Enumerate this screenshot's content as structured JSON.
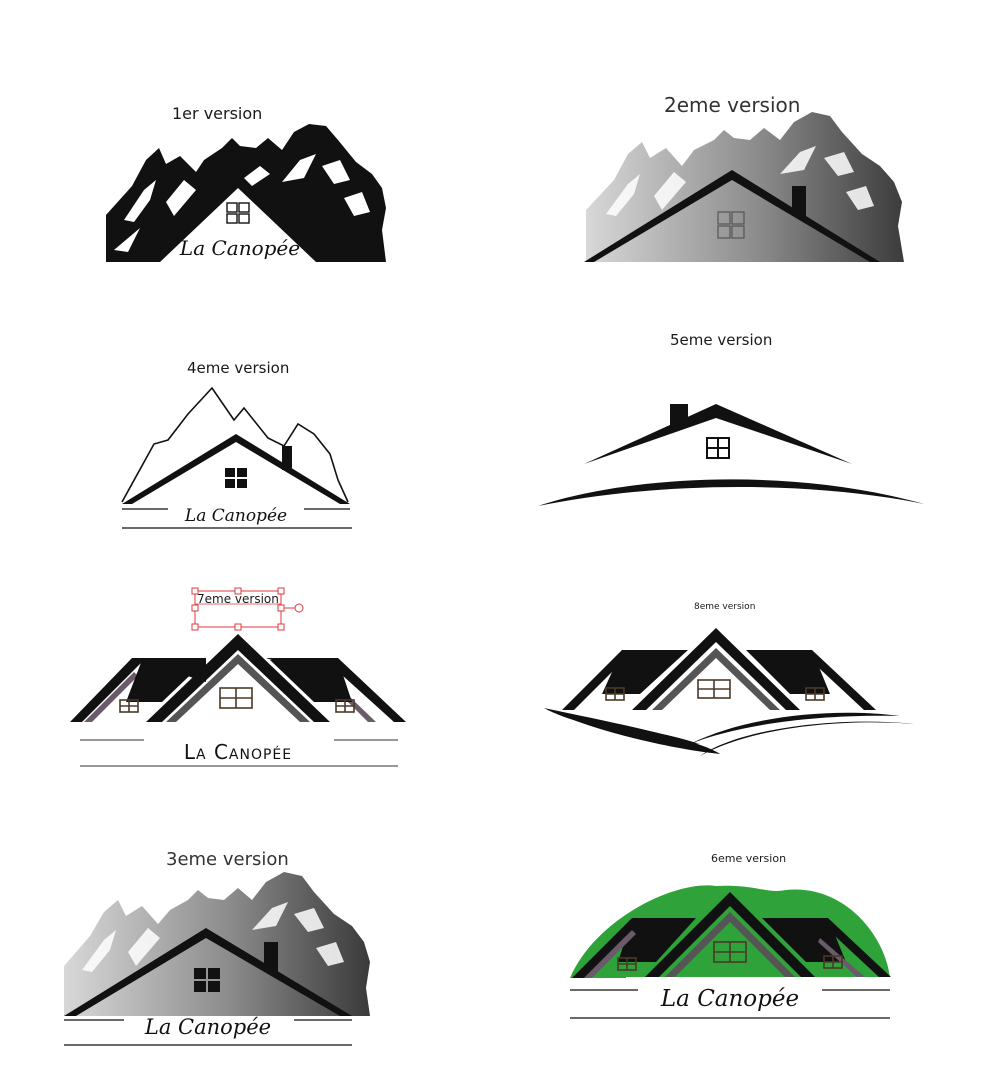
{
  "labels": {
    "v1": "1er version",
    "v2": "2eme version",
    "v3": "3eme version",
    "v4": "4eme version",
    "v5": "5eme version",
    "v6": "6eme version",
    "v7": "7eme version",
    "v8": "8eme version"
  },
  "brand": {
    "script_name": "La Canopée",
    "caps_name": "La Canopée"
  },
  "colors": {
    "ink": "#111111",
    "grey_light": "#cfcfcf",
    "grey_dark": "#444444",
    "green": "#2fa23a",
    "selection_red": "#e0393e",
    "window_brown": "#4a3a2a"
  },
  "icons": [
    "mountain-range",
    "house-roof",
    "chimney",
    "window",
    "swoosh",
    "selection-handles"
  ]
}
